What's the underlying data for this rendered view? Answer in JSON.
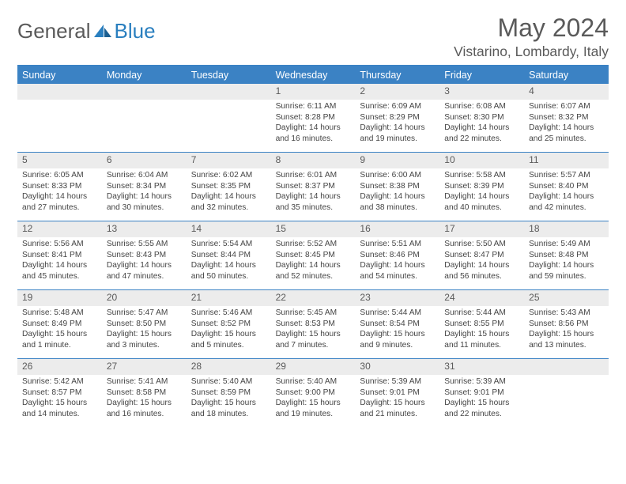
{
  "brand": {
    "part1": "General",
    "part2": "Blue"
  },
  "title": "May 2024",
  "location": "Vistarino, Lombardy, Italy",
  "colors": {
    "header_bg": "#3b82c4",
    "header_text": "#ffffff",
    "daynum_bg": "#ececec",
    "text": "#5a5a5a",
    "body_text": "#444444",
    "rule": "#3b82c4"
  },
  "typography": {
    "title_fontsize": 32,
    "location_fontsize": 17.5,
    "header_fontsize": 12.5,
    "daynum_fontsize": 12,
    "info_fontsize": 10.2
  },
  "layout": {
    "cols": 7,
    "rows": 5,
    "cell_min_height": 86
  },
  "day_headers": [
    "Sunday",
    "Monday",
    "Tuesday",
    "Wednesday",
    "Thursday",
    "Friday",
    "Saturday"
  ],
  "weeks": [
    [
      {
        "n": "",
        "sr": "",
        "ss": "",
        "dl": ""
      },
      {
        "n": "",
        "sr": "",
        "ss": "",
        "dl": ""
      },
      {
        "n": "",
        "sr": "",
        "ss": "",
        "dl": ""
      },
      {
        "n": "1",
        "sr": "Sunrise: 6:11 AM",
        "ss": "Sunset: 8:28 PM",
        "dl": "Daylight: 14 hours and 16 minutes."
      },
      {
        "n": "2",
        "sr": "Sunrise: 6:09 AM",
        "ss": "Sunset: 8:29 PM",
        "dl": "Daylight: 14 hours and 19 minutes."
      },
      {
        "n": "3",
        "sr": "Sunrise: 6:08 AM",
        "ss": "Sunset: 8:30 PM",
        "dl": "Daylight: 14 hours and 22 minutes."
      },
      {
        "n": "4",
        "sr": "Sunrise: 6:07 AM",
        "ss": "Sunset: 8:32 PM",
        "dl": "Daylight: 14 hours and 25 minutes."
      }
    ],
    [
      {
        "n": "5",
        "sr": "Sunrise: 6:05 AM",
        "ss": "Sunset: 8:33 PM",
        "dl": "Daylight: 14 hours and 27 minutes."
      },
      {
        "n": "6",
        "sr": "Sunrise: 6:04 AM",
        "ss": "Sunset: 8:34 PM",
        "dl": "Daylight: 14 hours and 30 minutes."
      },
      {
        "n": "7",
        "sr": "Sunrise: 6:02 AM",
        "ss": "Sunset: 8:35 PM",
        "dl": "Daylight: 14 hours and 32 minutes."
      },
      {
        "n": "8",
        "sr": "Sunrise: 6:01 AM",
        "ss": "Sunset: 8:37 PM",
        "dl": "Daylight: 14 hours and 35 minutes."
      },
      {
        "n": "9",
        "sr": "Sunrise: 6:00 AM",
        "ss": "Sunset: 8:38 PM",
        "dl": "Daylight: 14 hours and 38 minutes."
      },
      {
        "n": "10",
        "sr": "Sunrise: 5:58 AM",
        "ss": "Sunset: 8:39 PM",
        "dl": "Daylight: 14 hours and 40 minutes."
      },
      {
        "n": "11",
        "sr": "Sunrise: 5:57 AM",
        "ss": "Sunset: 8:40 PM",
        "dl": "Daylight: 14 hours and 42 minutes."
      }
    ],
    [
      {
        "n": "12",
        "sr": "Sunrise: 5:56 AM",
        "ss": "Sunset: 8:41 PM",
        "dl": "Daylight: 14 hours and 45 minutes."
      },
      {
        "n": "13",
        "sr": "Sunrise: 5:55 AM",
        "ss": "Sunset: 8:43 PM",
        "dl": "Daylight: 14 hours and 47 minutes."
      },
      {
        "n": "14",
        "sr": "Sunrise: 5:54 AM",
        "ss": "Sunset: 8:44 PM",
        "dl": "Daylight: 14 hours and 50 minutes."
      },
      {
        "n": "15",
        "sr": "Sunrise: 5:52 AM",
        "ss": "Sunset: 8:45 PM",
        "dl": "Daylight: 14 hours and 52 minutes."
      },
      {
        "n": "16",
        "sr": "Sunrise: 5:51 AM",
        "ss": "Sunset: 8:46 PM",
        "dl": "Daylight: 14 hours and 54 minutes."
      },
      {
        "n": "17",
        "sr": "Sunrise: 5:50 AM",
        "ss": "Sunset: 8:47 PM",
        "dl": "Daylight: 14 hours and 56 minutes."
      },
      {
        "n": "18",
        "sr": "Sunrise: 5:49 AM",
        "ss": "Sunset: 8:48 PM",
        "dl": "Daylight: 14 hours and 59 minutes."
      }
    ],
    [
      {
        "n": "19",
        "sr": "Sunrise: 5:48 AM",
        "ss": "Sunset: 8:49 PM",
        "dl": "Daylight: 15 hours and 1 minute."
      },
      {
        "n": "20",
        "sr": "Sunrise: 5:47 AM",
        "ss": "Sunset: 8:50 PM",
        "dl": "Daylight: 15 hours and 3 minutes."
      },
      {
        "n": "21",
        "sr": "Sunrise: 5:46 AM",
        "ss": "Sunset: 8:52 PM",
        "dl": "Daylight: 15 hours and 5 minutes."
      },
      {
        "n": "22",
        "sr": "Sunrise: 5:45 AM",
        "ss": "Sunset: 8:53 PM",
        "dl": "Daylight: 15 hours and 7 minutes."
      },
      {
        "n": "23",
        "sr": "Sunrise: 5:44 AM",
        "ss": "Sunset: 8:54 PM",
        "dl": "Daylight: 15 hours and 9 minutes."
      },
      {
        "n": "24",
        "sr": "Sunrise: 5:44 AM",
        "ss": "Sunset: 8:55 PM",
        "dl": "Daylight: 15 hours and 11 minutes."
      },
      {
        "n": "25",
        "sr": "Sunrise: 5:43 AM",
        "ss": "Sunset: 8:56 PM",
        "dl": "Daylight: 15 hours and 13 minutes."
      }
    ],
    [
      {
        "n": "26",
        "sr": "Sunrise: 5:42 AM",
        "ss": "Sunset: 8:57 PM",
        "dl": "Daylight: 15 hours and 14 minutes."
      },
      {
        "n": "27",
        "sr": "Sunrise: 5:41 AM",
        "ss": "Sunset: 8:58 PM",
        "dl": "Daylight: 15 hours and 16 minutes."
      },
      {
        "n": "28",
        "sr": "Sunrise: 5:40 AM",
        "ss": "Sunset: 8:59 PM",
        "dl": "Daylight: 15 hours and 18 minutes."
      },
      {
        "n": "29",
        "sr": "Sunrise: 5:40 AM",
        "ss": "Sunset: 9:00 PM",
        "dl": "Daylight: 15 hours and 19 minutes."
      },
      {
        "n": "30",
        "sr": "Sunrise: 5:39 AM",
        "ss": "Sunset: 9:01 PM",
        "dl": "Daylight: 15 hours and 21 minutes."
      },
      {
        "n": "31",
        "sr": "Sunrise: 5:39 AM",
        "ss": "Sunset: 9:01 PM",
        "dl": "Daylight: 15 hours and 22 minutes."
      },
      {
        "n": "",
        "sr": "",
        "ss": "",
        "dl": ""
      }
    ]
  ]
}
